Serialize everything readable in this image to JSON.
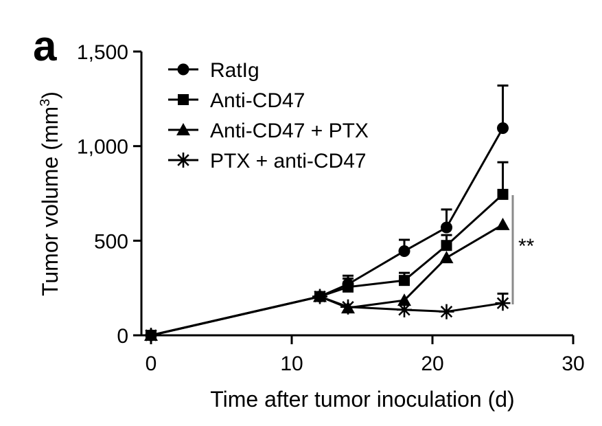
{
  "panel_label": "a",
  "chart_data": {
    "type": "line",
    "xlabel": "Time after tumor inoculation (d)",
    "ylabel_prefix": "Tumor volume (mm",
    "ylabel_sup": "3",
    "ylabel_suffix": ")",
    "xlim": [
      0,
      30
    ],
    "ylim": [
      0,
      1500
    ],
    "xticks": [
      0,
      10,
      20,
      30
    ],
    "xtick_labels": [
      "0",
      "10",
      "20",
      "30"
    ],
    "yticks": [
      0,
      500,
      1000,
      1500
    ],
    "ytick_labels": [
      "0",
      "500",
      "1,000",
      "1,500"
    ],
    "grid": false,
    "legend_position": "top-left",
    "significance": "**",
    "series": [
      {
        "name": "RatIg",
        "marker": "circle",
        "x": [
          0,
          12,
          14,
          18,
          21,
          25
        ],
        "y": [
          0,
          205,
          270,
          445,
          570,
          1095
        ],
        "err": [
          0,
          0,
          45,
          60,
          95,
          225
        ]
      },
      {
        "name": "Anti-CD47",
        "marker": "square",
        "x": [
          0,
          12,
          14,
          18,
          21,
          25
        ],
        "y": [
          0,
          205,
          255,
          290,
          475,
          745
        ],
        "err": [
          0,
          0,
          45,
          40,
          55,
          170
        ]
      },
      {
        "name": "Anti-CD47 + PTX",
        "marker": "triangle",
        "x": [
          0,
          12,
          14,
          18,
          21,
          25
        ],
        "y": [
          0,
          205,
          145,
          185,
          410,
          585
        ],
        "err": [
          0,
          0,
          0,
          0,
          0,
          0
        ]
      },
      {
        "name": "PTX + anti-CD47",
        "marker": "asterisk",
        "x": [
          0,
          12,
          14,
          18,
          21,
          25
        ],
        "y": [
          0,
          205,
          150,
          135,
          125,
          170
        ],
        "err": [
          0,
          0,
          0,
          0,
          0,
          50
        ]
      }
    ]
  }
}
